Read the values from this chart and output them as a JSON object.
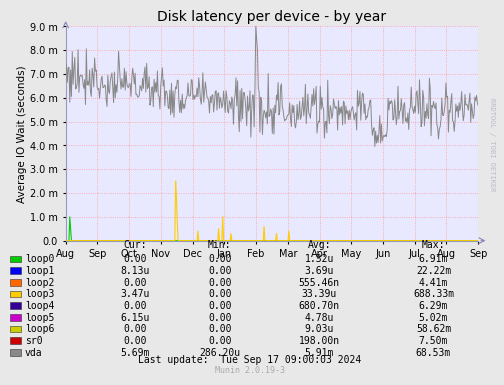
{
  "title": "Disk latency per device - by year",
  "ylabel": "Average IO Wait (seconds)",
  "right_label": "RRDTOOL / TOBI OETIKER",
  "background_color": "#E8E8E8",
  "plot_bg_color": "#E8E8FF",
  "ylim": [
    0,
    0.009
  ],
  "yticks": [
    0,
    0.001,
    0.002,
    0.003,
    0.004,
    0.005,
    0.006,
    0.007,
    0.008,
    0.009
  ],
  "ytick_labels": [
    "0.0",
    "1.0 m",
    "2.0 m",
    "3.0 m",
    "4.0 m",
    "5.0 m",
    "6.0 m",
    "7.0 m",
    "8.0 m",
    "9.0 m"
  ],
  "x_months": [
    "Aug",
    "Sep",
    "Oct",
    "Nov",
    "Dec",
    "Jan",
    "Feb",
    "Mar",
    "Apr",
    "May",
    "Jun",
    "Jul",
    "Aug",
    "Sep"
  ],
  "legend_entries": [
    {
      "name": "loop0",
      "color": "#00CC00"
    },
    {
      "name": "loop1",
      "color": "#0000FF"
    },
    {
      "name": "loop2",
      "color": "#FF6600"
    },
    {
      "name": "loop3",
      "color": "#FFCC00"
    },
    {
      "name": "loop4",
      "color": "#330099"
    },
    {
      "name": "loop5",
      "color": "#CC00CC"
    },
    {
      "name": "loop6",
      "color": "#CCCC00"
    },
    {
      "name": "sr0",
      "color": "#CC0000"
    },
    {
      "name": "vda",
      "color": "#888888"
    }
  ],
  "table_headers": [
    "Cur:",
    "Min:",
    "Avg:",
    "Max:"
  ],
  "table_data": [
    [
      "0.00",
      "0.00",
      "1.32u",
      "6.91m"
    ],
    [
      "8.13u",
      "0.00",
      "3.69u",
      "22.22m"
    ],
    [
      "0.00",
      "0.00",
      "555.46n",
      "4.41m"
    ],
    [
      "3.47u",
      "0.00",
      "33.39u",
      "688.33m"
    ],
    [
      "0.00",
      "0.00",
      "680.70n",
      "6.29m"
    ],
    [
      "6.15u",
      "0.00",
      "4.78u",
      "5.02m"
    ],
    [
      "0.00",
      "0.00",
      "9.03u",
      "58.62m"
    ],
    [
      "0.00",
      "0.00",
      "198.00n",
      "7.50m"
    ],
    [
      "5.69m",
      "286.20u",
      "5.91m",
      "68.53m"
    ]
  ],
  "last_update": "Last update:  Tue Sep 17 09:00:03 2024",
  "munin_version": "Munin 2.0.19-3"
}
